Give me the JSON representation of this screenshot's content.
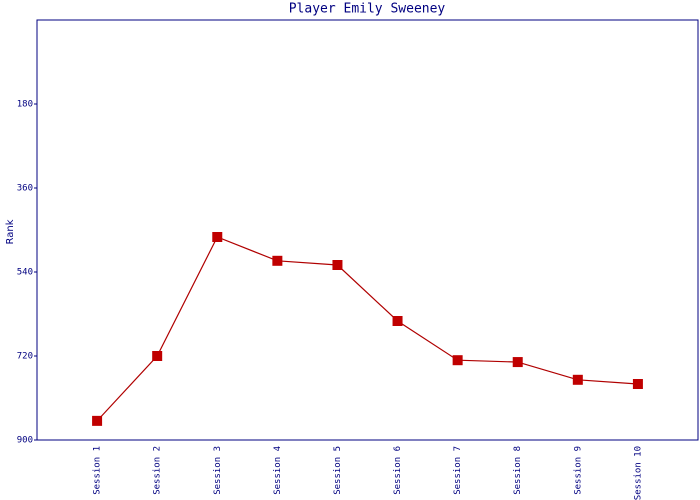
{
  "chart_data": {
    "type": "line",
    "title": "Player Emily Sweeney",
    "y_label": "Rank",
    "categories": [
      "Session 1",
      "Session 2",
      "Session 3",
      "Session 4",
      "Session 5",
      "Session 6",
      "Session 7",
      "Session 8",
      "Session 9",
      "Session 10"
    ],
    "series": [
      {
        "name": "Rank",
        "color": "#b00000",
        "marker_color": "#c00000",
        "values": [
          859,
          720,
          465,
          516,
          525,
          645,
          729,
          733,
          771,
          780
        ]
      }
    ],
    "ylim": [
      900,
      0
    ],
    "yticks": [
      180,
      360,
      540,
      720,
      900
    ],
    "grid": false
  }
}
